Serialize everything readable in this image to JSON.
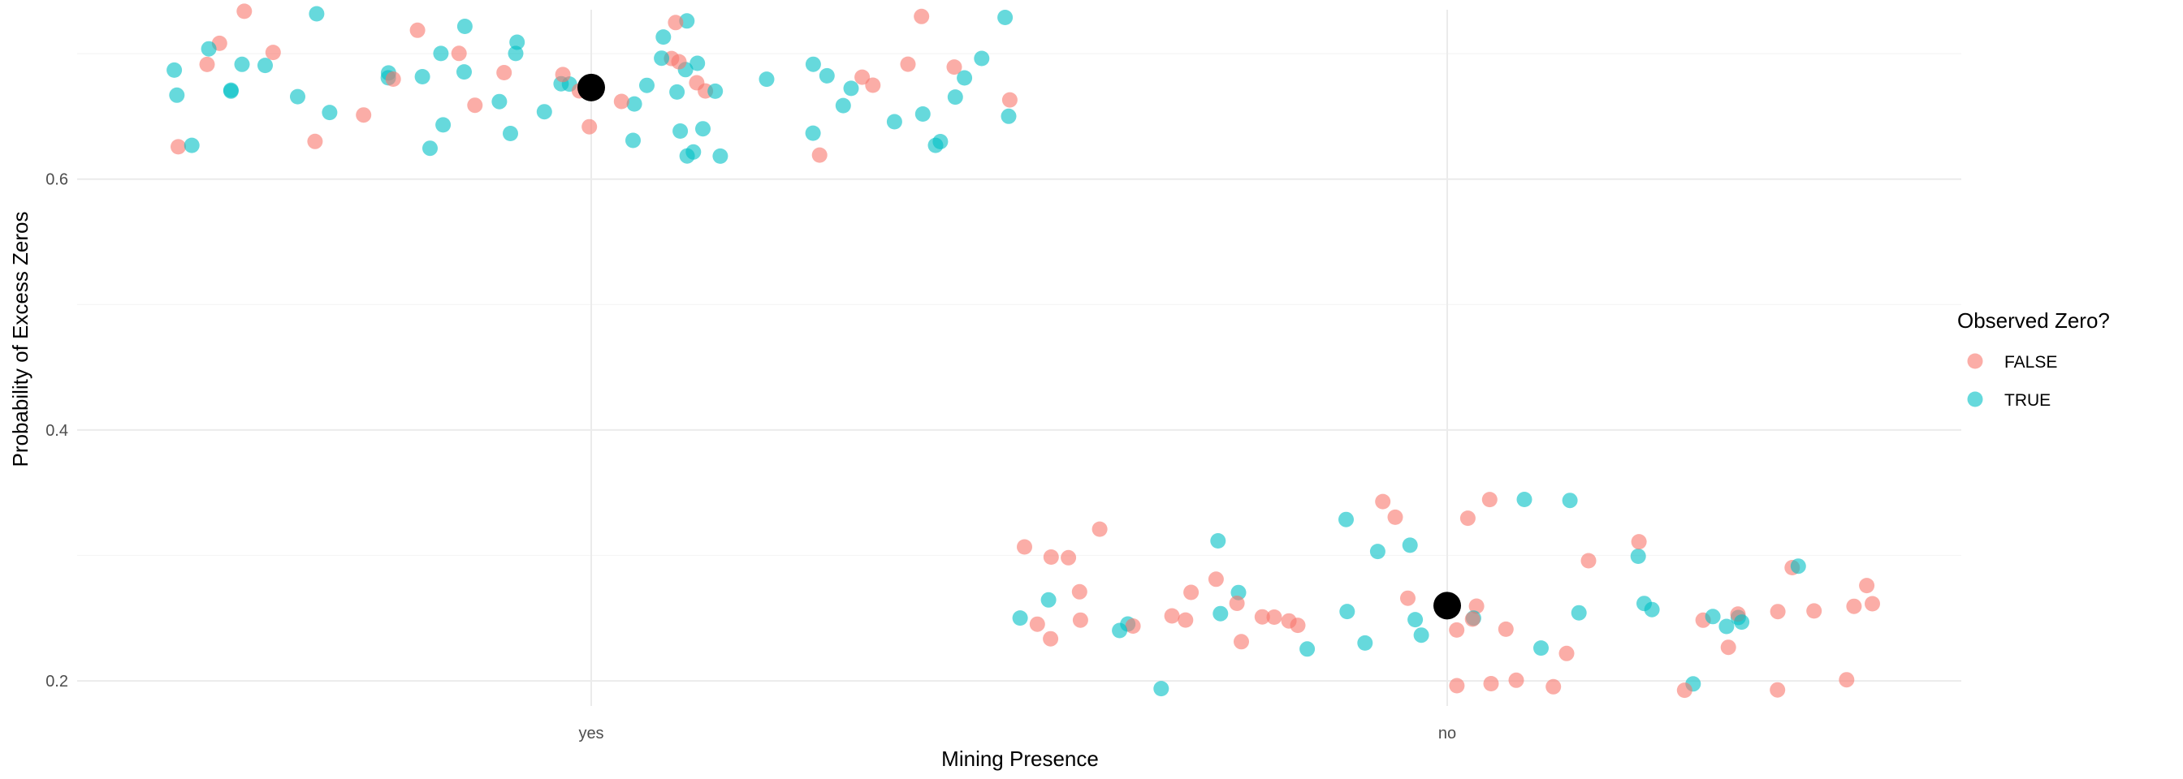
{
  "chart_data": {
    "type": "scatter",
    "title": "",
    "xlabel": "Mining Presence",
    "ylabel": "Probability of Excess Zeros",
    "categories": [
      "yes",
      "no"
    ],
    "ylim": [
      0.18,
      0.735
    ],
    "yticks": [
      0.2,
      0.4,
      0.6
    ],
    "ytick_labels": [
      "0.2",
      "0.4",
      "0.6"
    ],
    "jitter_width": 0.5,
    "legend": {
      "title": "Observed Zero?",
      "position": "right",
      "entries": [
        {
          "label": "FALSE",
          "color": "#F8766D"
        },
        {
          "label": "TRUE",
          "color": "#00BFC4"
        }
      ]
    },
    "point_alpha": 0.6,
    "group_means": [
      {
        "category": "yes",
        "value": 0.673
      },
      {
        "category": "no",
        "value": 0.26
      }
    ],
    "series": [
      {
        "name": "FALSE",
        "color": "#F8766D",
        "points_yes": [
          0.621,
          0.625,
          0.63,
          0.64,
          0.65,
          0.66,
          0.66,
          0.665,
          0.67,
          0.67,
          0.675,
          0.675,
          0.68,
          0.68,
          0.685,
          0.685,
          0.69,
          0.69,
          0.69,
          0.695,
          0.695,
          0.7,
          0.7,
          0.71,
          0.72,
          0.725,
          0.73,
          0.733
        ],
        "points_no": [
          0.193,
          0.193,
          0.195,
          0.197,
          0.198,
          0.2,
          0.2,
          0.22,
          0.225,
          0.23,
          0.235,
          0.24,
          0.24,
          0.245,
          0.245,
          0.245,
          0.248,
          0.248,
          0.25,
          0.25,
          0.25,
          0.25,
          0.252,
          0.252,
          0.255,
          0.255,
          0.255,
          0.258,
          0.26,
          0.26,
          0.262,
          0.265,
          0.27,
          0.27,
          0.275,
          0.28,
          0.29,
          0.295,
          0.3,
          0.3,
          0.305,
          0.31,
          0.32,
          0.33,
          0.33,
          0.343,
          0.343
        ]
      },
      {
        "name": "TRUE",
        "color": "#00BFC4",
        "points_yes": [
          0.62,
          0.62,
          0.622,
          0.625,
          0.625,
          0.628,
          0.63,
          0.632,
          0.635,
          0.635,
          0.64,
          0.64,
          0.645,
          0.645,
          0.65,
          0.65,
          0.655,
          0.655,
          0.66,
          0.66,
          0.66,
          0.665,
          0.665,
          0.665,
          0.668,
          0.67,
          0.67,
          0.67,
          0.672,
          0.675,
          0.675,
          0.675,
          0.678,
          0.68,
          0.68,
          0.68,
          0.682,
          0.685,
          0.685,
          0.685,
          0.688,
          0.69,
          0.69,
          0.69,
          0.692,
          0.695,
          0.695,
          0.7,
          0.7,
          0.705,
          0.71,
          0.715,
          0.72,
          0.725,
          0.73,
          0.733
        ],
        "points_no": [
          0.193,
          0.197,
          0.225,
          0.228,
          0.23,
          0.235,
          0.24,
          0.245,
          0.245,
          0.248,
          0.25,
          0.25,
          0.25,
          0.252,
          0.252,
          0.255,
          0.255,
          0.255,
          0.258,
          0.26,
          0.265,
          0.27,
          0.29,
          0.3,
          0.305,
          0.31,
          0.31,
          0.33,
          0.343,
          0.343
        ]
      }
    ]
  }
}
